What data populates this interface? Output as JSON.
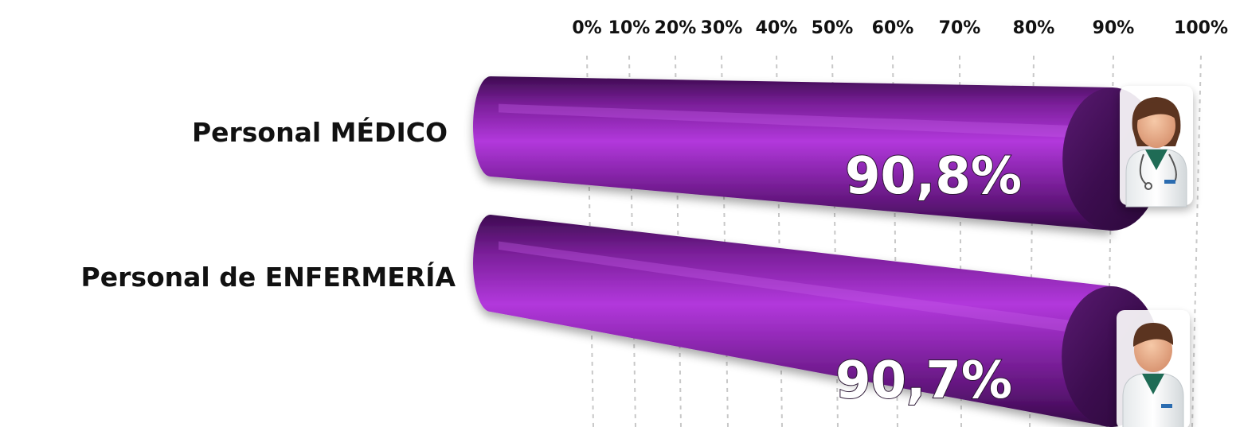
{
  "chart_data": {
    "type": "bar",
    "orientation": "horizontal",
    "categories": [
      "Personal MÉDICO",
      "Personal de ENFERMERÍA"
    ],
    "values": [
      90.8,
      90.7
    ],
    "value_labels": [
      "90,8%",
      "90,7%"
    ],
    "xlim": [
      0,
      100
    ],
    "x_ticks": [
      0,
      10,
      20,
      30,
      40,
      50,
      60,
      70,
      80,
      90,
      100
    ],
    "x_tick_labels": [
      "0%",
      "10%",
      "20%",
      "30%",
      "40%",
      "50%",
      "60%",
      "70%",
      "80%",
      "90%",
      "100%"
    ],
    "grid": "vertical dashed",
    "colors": {
      "bar": "#8a2aa6",
      "bar_light": "#b036d8",
      "bar_dark": "#3f0d52",
      "grid": "#c8c8c8",
      "text": "#111111"
    },
    "icons": [
      "doctor-icon",
      "nurse-icon"
    ]
  }
}
